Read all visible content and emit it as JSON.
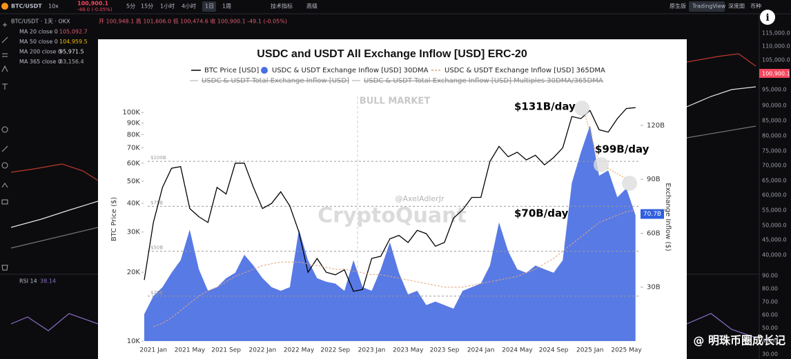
{
  "toolbar": {
    "symbol": "BTC/USDT",
    "leverage": "10x",
    "price": "100,900.1",
    "change": "-48.0 (-0.05%)",
    "intervals": [
      "5分",
      "15分",
      "1小时",
      "4小时",
      "1日",
      "1周"
    ],
    "indicators": "技术指标",
    "advanced": "高级",
    "views": [
      "原生版",
      "TradingView",
      "深度图",
      "币种"
    ]
  },
  "legend": {
    "header": "BTC/USDT · 1天 · OKX",
    "ohlc": "开 100,948.1 高 101,606.0 低 100,474.6 收 100,900.1 -49.1 (-0.05%)",
    "ma": [
      {
        "label": "MA 20 close 0",
        "value": "105,092.7"
      },
      {
        "label": "MA 50 close 0",
        "value": "104,959.5"
      },
      {
        "label": "MA 200 close 0",
        "value": "95,971.5"
      },
      {
        "label": "MA 365 close 0",
        "value": "83,156.4"
      }
    ]
  },
  "rsi": {
    "label": "RSI 14",
    "value": "38.14"
  },
  "price_axis": [
    "115,000.0",
    "110,000.0",
    "105,000.0",
    "95,000.0",
    "90,000.0",
    "85,000.0",
    "80,000.0",
    "75,000.0",
    "70,000.0",
    "65,000.0",
    "60,000.0",
    "55,000.0",
    "50,000.0",
    "45,000.0",
    "40,000.0"
  ],
  "last_price": "100,900.1",
  "rsi_axis": [
    "90.00",
    "80.00",
    "70.00",
    "60.00",
    "50.00",
    "40.00",
    "30.00"
  ],
  "watermark": "@ 明珠币圈成长记",
  "chart_data": {
    "type": "line",
    "title": "USDC and USDT All Exchange Inflow [USD] ERC-20",
    "categories": [
      null,
      "2021 Jan",
      null,
      null,
      null,
      "2021 May",
      null,
      null,
      null,
      "2021 Sep",
      null,
      null,
      null,
      "2022 Jan",
      null,
      null,
      null,
      "2022 May",
      null,
      null,
      null,
      "2022 Sep",
      null,
      null,
      null,
      "2023 Jan",
      null,
      null,
      null,
      "2023 May",
      null,
      null,
      null,
      "2023 Sep",
      null,
      null,
      null,
      "2024 Jan",
      null,
      null,
      null,
      "2024 May",
      null,
      null,
      null,
      "2024 Sep",
      null,
      null,
      null,
      "2025 Jan",
      null,
      null,
      null,
      "2025 May",
      null
    ],
    "series": [
      {
        "name": "BTC Price [USD]",
        "color": "#000000",
        "axis": "y",
        "values": [
          18500,
          33000,
          47000,
          57000,
          58000,
          38000,
          35000,
          33000,
          47000,
          44000,
          60000,
          60000,
          47000,
          38000,
          40000,
          45000,
          39000,
          30000,
          20000,
          23000,
          20000,
          19500,
          20500,
          16500,
          16800,
          23000,
          23500,
          28000,
          29000,
          27000,
          30500,
          29500,
          26000,
          27000,
          34500,
          37500,
          42500,
          42500,
          61000,
          71000,
          64000,
          67000,
          62000,
          65000,
          59000,
          63500,
          70000,
          96000,
          94000,
          102000,
          84000,
          82000,
          94000,
          104000,
          105000
        ]
      },
      {
        "name": "USDC & USDT Exchange Inflow [USD] 30DMA",
        "color": "#4a6fe3",
        "axis": "y2",
        "values": [
          15,
          25,
          30,
          38,
          45,
          62,
          40,
          28,
          30,
          35,
          38,
          48,
          42,
          35,
          30,
          28,
          30,
          62,
          45,
          35,
          33,
          32,
          28,
          45,
          30,
          28,
          40,
          55,
          38,
          26,
          28,
          20,
          22,
          20,
          18,
          28,
          30,
          32,
          42,
          66,
          50,
          40,
          38,
          42,
          40,
          38,
          45,
          88,
          105,
          120,
          92,
          95,
          80,
          85,
          70
        ]
      },
      {
        "name": "USDC & USDT Exchange Inflow [USD] 365DMA",
        "color": "#e0a47e",
        "axis": "y2",
        "values": [
          null,
          8,
          10,
          13,
          17,
          21,
          25,
          28,
          30,
          33,
          36,
          38,
          40,
          42,
          43,
          44,
          44,
          44,
          43,
          42,
          41,
          40,
          40,
          39,
          38,
          37,
          37,
          36,
          35,
          34,
          33,
          32,
          31,
          30,
          30,
          30,
          31,
          32,
          33,
          34,
          35,
          36,
          38,
          40,
          43,
          46,
          50,
          54,
          58,
          62,
          66,
          68,
          70,
          72,
          73
        ]
      }
    ],
    "legend_hidden": [
      "USDC & USDT Total Exchange Inflow [USD]",
      "USDC & USDT Total Exchange Inflow [USD] Multiples 30DMA/365DMA"
    ],
    "ylabel": "BTC Price ($)",
    "y2label": "Exchange Inflow ($)",
    "yscale": "log",
    "ylim": [
      10000,
      121600
    ],
    "yticks": [
      {
        "value": 10000,
        "label": "10K"
      },
      {
        "value": 20000,
        "label": "20K"
      },
      {
        "value": 30000,
        "label": "30K"
      },
      {
        "value": 40000,
        "label": "40K"
      },
      {
        "value": 50000,
        "label": "50K"
      },
      {
        "value": 60000,
        "label": "60K"
      },
      {
        "value": 70000,
        "label": "70K"
      },
      {
        "value": 80000,
        "label": "80K"
      },
      {
        "value": 90000,
        "label": "90K"
      },
      {
        "value": 100000,
        "label": "100K"
      }
    ],
    "y2lim": [
      0,
      138
    ],
    "y2ticks": [
      {
        "value": 30,
        "label": "30B"
      },
      {
        "value": 60,
        "label": "60B"
      },
      {
        "value": 90,
        "label": "90B"
      },
      {
        "value": 120,
        "label": "120B"
      }
    ],
    "reference_lines": [
      {
        "value": 100,
        "label": "$100B"
      },
      {
        "value": 75,
        "label": "$75B"
      },
      {
        "value": 50,
        "label": "$50B"
      },
      {
        "value": 25,
        "label": "$25B"
      }
    ],
    "last_value": {
      "value": 70.7,
      "label": "70.7B"
    },
    "annotations": {
      "phase": "BULL MARKET",
      "peak": "$131B/day",
      "second": "$99B/day",
      "current": "$70B/day"
    },
    "credits": {
      "author": "@AxelAdlerJr",
      "source": "CryptoQuant"
    }
  }
}
